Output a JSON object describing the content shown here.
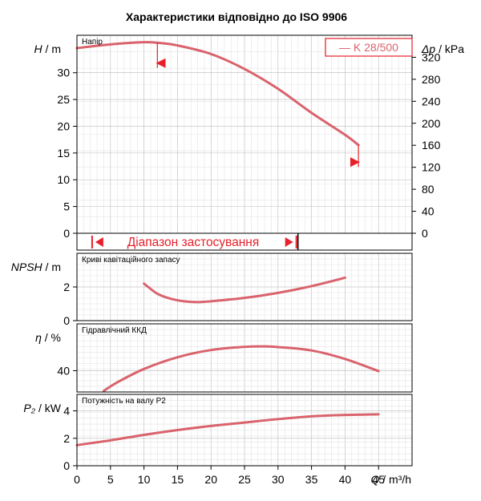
{
  "title": "Характеристики відповідно до ISO 9906",
  "legend_label": "— K 28/500",
  "range_label": "Діапазон застосування",
  "x_axis": {
    "label": "Q / m³/h",
    "ticks": [
      "0",
      "5",
      "10",
      "15",
      "20",
      "25",
      "30",
      "35",
      "40",
      "45"
    ],
    "range": [
      0,
      50
    ]
  },
  "panels": [
    {
      "id": "head",
      "title": "Напір",
      "ylabel": "H / m",
      "yticks": [
        "0",
        "5",
        "10",
        "15",
        "20",
        "25",
        "30"
      ],
      "ylim": [
        0,
        37
      ],
      "right_axis": {
        "label": "Δp / kPa",
        "ticks": [
          "0",
          "40",
          "80",
          "120",
          "160",
          "200",
          "240",
          "280",
          "320"
        ],
        "range": [
          0,
          360
        ]
      }
    },
    {
      "id": "npsh",
      "title": "Криві кавітаційного запасу",
      "ylabel": "NPSH / m",
      "yticks": [
        "0",
        "2"
      ],
      "ylim": [
        0,
        4
      ]
    },
    {
      "id": "efficiency",
      "title": "Гідравлічний ККД",
      "ylabel": "η / %",
      "yticks": [
        "40"
      ],
      "ylim": [
        30,
        62
      ]
    },
    {
      "id": "power",
      "title": "Потужність на валу P2",
      "ylabel": "P₂ / kW",
      "yticks": [
        "0",
        "2",
        "4"
      ],
      "ylim": [
        0,
        5.2
      ]
    }
  ],
  "colors": {
    "curve": "#d9636c",
    "marker": "#e8202a",
    "grid": "#cccccc"
  },
  "chart_data": [
    {
      "type": "line",
      "title": "Напір",
      "xlabel": "Q / m³/h",
      "ylabel": "H / m",
      "xlim": [
        0,
        50
      ],
      "ylim": [
        0,
        37
      ],
      "series": [
        {
          "name": "K 28/500",
          "x": [
            0,
            5,
            10,
            12,
            15,
            20,
            25,
            30,
            35,
            40,
            42
          ],
          "y": [
            34.6,
            35.3,
            35.7,
            35.6,
            35.1,
            33.5,
            30.7,
            27.0,
            22.5,
            18.4,
            16.5
          ]
        }
      ],
      "markers": [
        {
          "x": 12.5,
          "y": 31.8
        },
        {
          "x": 41.5,
          "y": 13.3
        }
      ],
      "range_of_use": [
        2.5,
        32.5
      ]
    },
    {
      "type": "line",
      "title": "Криві кавітаційного запасу",
      "ylabel": "NPSH / m",
      "xlim": [
        0,
        50
      ],
      "ylim": [
        0,
        4
      ],
      "series": [
        {
          "name": "K 28/500",
          "x": [
            10,
            12,
            14,
            16,
            18,
            20,
            25,
            30,
            35,
            40
          ],
          "y": [
            2.2,
            1.6,
            1.3,
            1.15,
            1.1,
            1.15,
            1.35,
            1.65,
            2.05,
            2.55
          ]
        }
      ]
    },
    {
      "type": "line",
      "title": "Гідравлічний ККД",
      "ylabel": "η / %",
      "xlim": [
        0,
        50
      ],
      "ylim": [
        30,
        62
      ],
      "series": [
        {
          "name": "K 28/500",
          "x": [
            4,
            6,
            10,
            15,
            20,
            25,
            28,
            30,
            35,
            40,
            45
          ],
          "y": [
            30.5,
            34.5,
            40.8,
            46.3,
            49.7,
            51.2,
            51.4,
            51.1,
            49.5,
            45.5,
            39.8
          ]
        }
      ]
    },
    {
      "type": "line",
      "title": "Потужність на валу P2",
      "ylabel": "P₂ / kW",
      "xlim": [
        0,
        50
      ],
      "ylim": [
        0,
        5.2
      ],
      "series": [
        {
          "name": "K 28/500",
          "x": [
            0,
            5,
            10,
            15,
            20,
            25,
            30,
            35,
            40,
            45
          ],
          "y": [
            1.5,
            1.85,
            2.25,
            2.6,
            2.9,
            3.15,
            3.4,
            3.6,
            3.7,
            3.75
          ]
        }
      ]
    }
  ]
}
